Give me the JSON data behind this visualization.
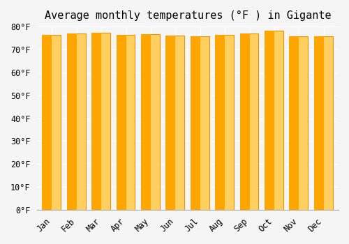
{
  "title": "Average monthly temperatures (°F ) in Gigante",
  "months": [
    "Jan",
    "Feb",
    "Mar",
    "Apr",
    "May",
    "Jun",
    "Jul",
    "Aug",
    "Sep",
    "Oct",
    "Nov",
    "Dec"
  ],
  "values": [
    76.5,
    77.0,
    77.2,
    76.5,
    76.8,
    76.0,
    75.8,
    76.5,
    77.0,
    78.3,
    75.7,
    75.8
  ],
  "bar_color_top": "#FFA500",
  "bar_color_bottom": "#FFD060",
  "edge_color": "#E8920A",
  "ylim": [
    0,
    80
  ],
  "yticks": [
    0,
    10,
    20,
    30,
    40,
    50,
    60,
    70,
    80
  ],
  "ytick_labels": [
    "0°F",
    "10°F",
    "20°F",
    "30°F",
    "40°F",
    "50°F",
    "60°F",
    "70°F",
    "80°F"
  ],
  "background_color": "#F5F5F5",
  "grid_color": "#FFFFFF",
  "title_fontsize": 11,
  "tick_fontsize": 8.5
}
